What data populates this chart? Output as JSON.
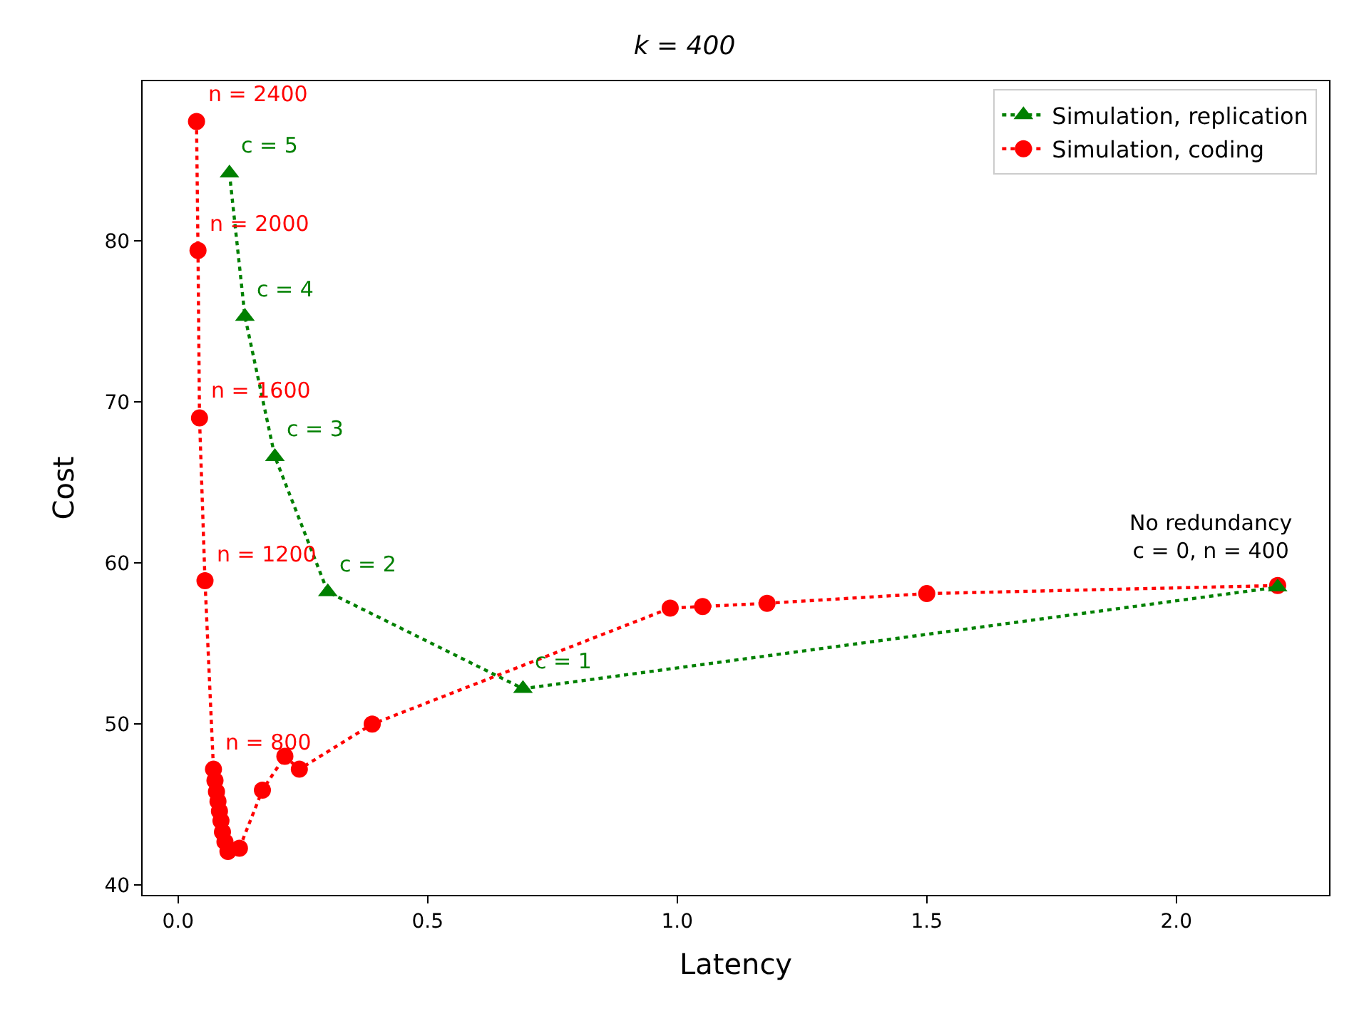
{
  "chart_data": {
    "type": "line",
    "title": "k = 400",
    "xlabel": "Latency",
    "ylabel": "Cost",
    "xlim": [
      -0.071,
      2.306
    ],
    "xticks": [
      {
        "value": 0,
        "label": "0.0"
      },
      0.5,
      {
        "value": 1,
        "label": "1.0"
      },
      1.5,
      {
        "value": 2,
        "label": "2.0"
      }
    ],
    "ylim": [
      39.4,
      89.9
    ],
    "yticks": [
      40,
      50,
      60,
      70,
      80
    ],
    "legend": "top right",
    "line_style": "dotted",
    "series": [
      {
        "name": "Simulation, replication",
        "color": "#008000",
        "marker": "triangle",
        "x": [
          0.103,
          0.134,
          0.194,
          0.3,
          0.691,
          2.203
        ],
        "values": [
          84.2,
          75.3,
          66.6,
          58.2,
          52.2,
          58.5
        ]
      },
      {
        "name": "Simulation, coding",
        "color": "#ff0000",
        "marker": "circle",
        "x": [
          0.037,
          0.04,
          0.043,
          0.054,
          0.071,
          0.074,
          0.077,
          0.08,
          0.083,
          0.086,
          0.089,
          0.094,
          0.1,
          0.123,
          0.169,
          0.214,
          0.243,
          0.389,
          0.986,
          1.051,
          1.18,
          1.5,
          2.203
        ],
        "values": [
          87.4,
          79.4,
          69.0,
          58.9,
          47.2,
          46.5,
          45.8,
          45.2,
          44.6,
          44.0,
          43.3,
          42.7,
          42.1,
          42.3,
          45.9,
          48.0,
          47.2,
          50.0,
          57.2,
          57.3,
          57.5,
          58.1,
          58.6
        ]
      }
    ],
    "annotations": [
      {
        "text": "c = 5",
        "x": 0.103,
        "y": 84.2
      },
      {
        "text": "c = 4",
        "x": 0.134,
        "y": 75.3
      },
      {
        "text": "c = 3",
        "x": 0.194,
        "y": 66.6
      },
      {
        "text": "c = 2",
        "x": 0.3,
        "y": 58.2
      },
      {
        "text": "c = 1",
        "x": 0.691,
        "y": 52.2
      },
      {
        "text": "n = 2400",
        "x": 0.037,
        "y": 87.4
      },
      {
        "text": "n = 2000",
        "x": 0.04,
        "y": 79.4
      },
      {
        "text": "n = 1600",
        "x": 0.043,
        "y": 69.0
      },
      {
        "text": "n = 1200",
        "x": 0.054,
        "y": 58.9
      },
      {
        "text": "n = 800",
        "x": 0.071,
        "y": 47.2
      },
      {
        "text": "No redundancy\nc = 0, n = 400",
        "x": 2.203,
        "y": 58.5
      }
    ]
  }
}
